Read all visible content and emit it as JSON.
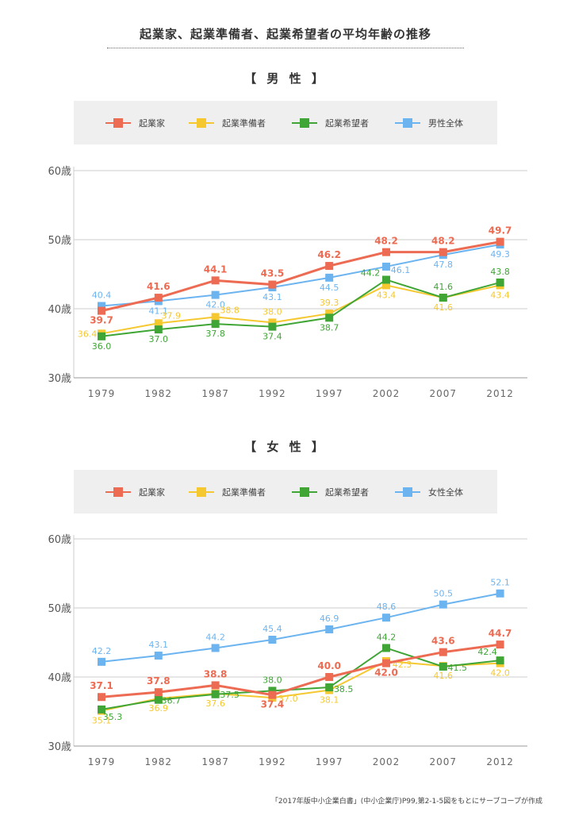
{
  "title": "起業家、起業準備者、起業希望者の平均年齢の推移",
  "source": "「2017年版中小企業白書」(中小企業庁)P99,第2-1-5図をもとにサーブコープが作成",
  "chart_data": [
    {
      "type": "line",
      "title": "【 男 性 】",
      "ylabel_suffix": "歳",
      "yticks": [
        "30歳",
        "40歳",
        "50歳",
        "60歳"
      ],
      "ylim": [
        30,
        60
      ],
      "categories": [
        "1979",
        "1982",
        "1987",
        "1992",
        "1997",
        "2002",
        "2007",
        "2012"
      ],
      "series": [
        {
          "name": "起業家",
          "color": "#ec6b52",
          "values": [
            39.7,
            41.6,
            44.1,
            43.5,
            46.2,
            48.2,
            48.2,
            49.7
          ]
        },
        {
          "name": "起業準備者",
          "color": "#f5c830",
          "values": [
            36.4,
            37.9,
            38.8,
            38.0,
            39.3,
            43.4,
            41.6,
            43.4
          ]
        },
        {
          "name": "起業希望者",
          "color": "#3fa535",
          "values": [
            36.0,
            37.0,
            37.8,
            37.4,
            38.7,
            44.2,
            41.6,
            43.8
          ]
        },
        {
          "name": "男性全体",
          "color": "#6cb4f0",
          "values": [
            40.4,
            41.1,
            42.0,
            43.1,
            44.5,
            46.1,
            47.8,
            49.3
          ]
        }
      ]
    },
    {
      "type": "line",
      "title": "【 女 性 】",
      "yticks": [
        "30歳",
        "40歳",
        "50歳",
        "60歳"
      ],
      "ylim": [
        30,
        60
      ],
      "categories": [
        "1979",
        "1982",
        "1987",
        "1992",
        "1997",
        "2002",
        "2007",
        "2012"
      ],
      "series": [
        {
          "name": "起業家",
          "color": "#ec6b52",
          "values": [
            37.1,
            37.8,
            38.8,
            37.4,
            40.0,
            42.0,
            43.6,
            44.7
          ]
        },
        {
          "name": "起業準備者",
          "color": "#f5c830",
          "values": [
            35.1,
            36.9,
            37.6,
            37.0,
            38.1,
            42.3,
            41.6,
            42.0
          ]
        },
        {
          "name": "起業希望者",
          "color": "#3fa535",
          "values": [
            35.3,
            36.7,
            37.5,
            38.0,
            38.5,
            44.2,
            41.5,
            42.4
          ]
        },
        {
          "name": "女性全体",
          "color": "#6cb4f0",
          "values": [
            42.2,
            43.1,
            44.2,
            45.4,
            46.9,
            48.6,
            50.5,
            52.1
          ]
        }
      ]
    }
  ]
}
